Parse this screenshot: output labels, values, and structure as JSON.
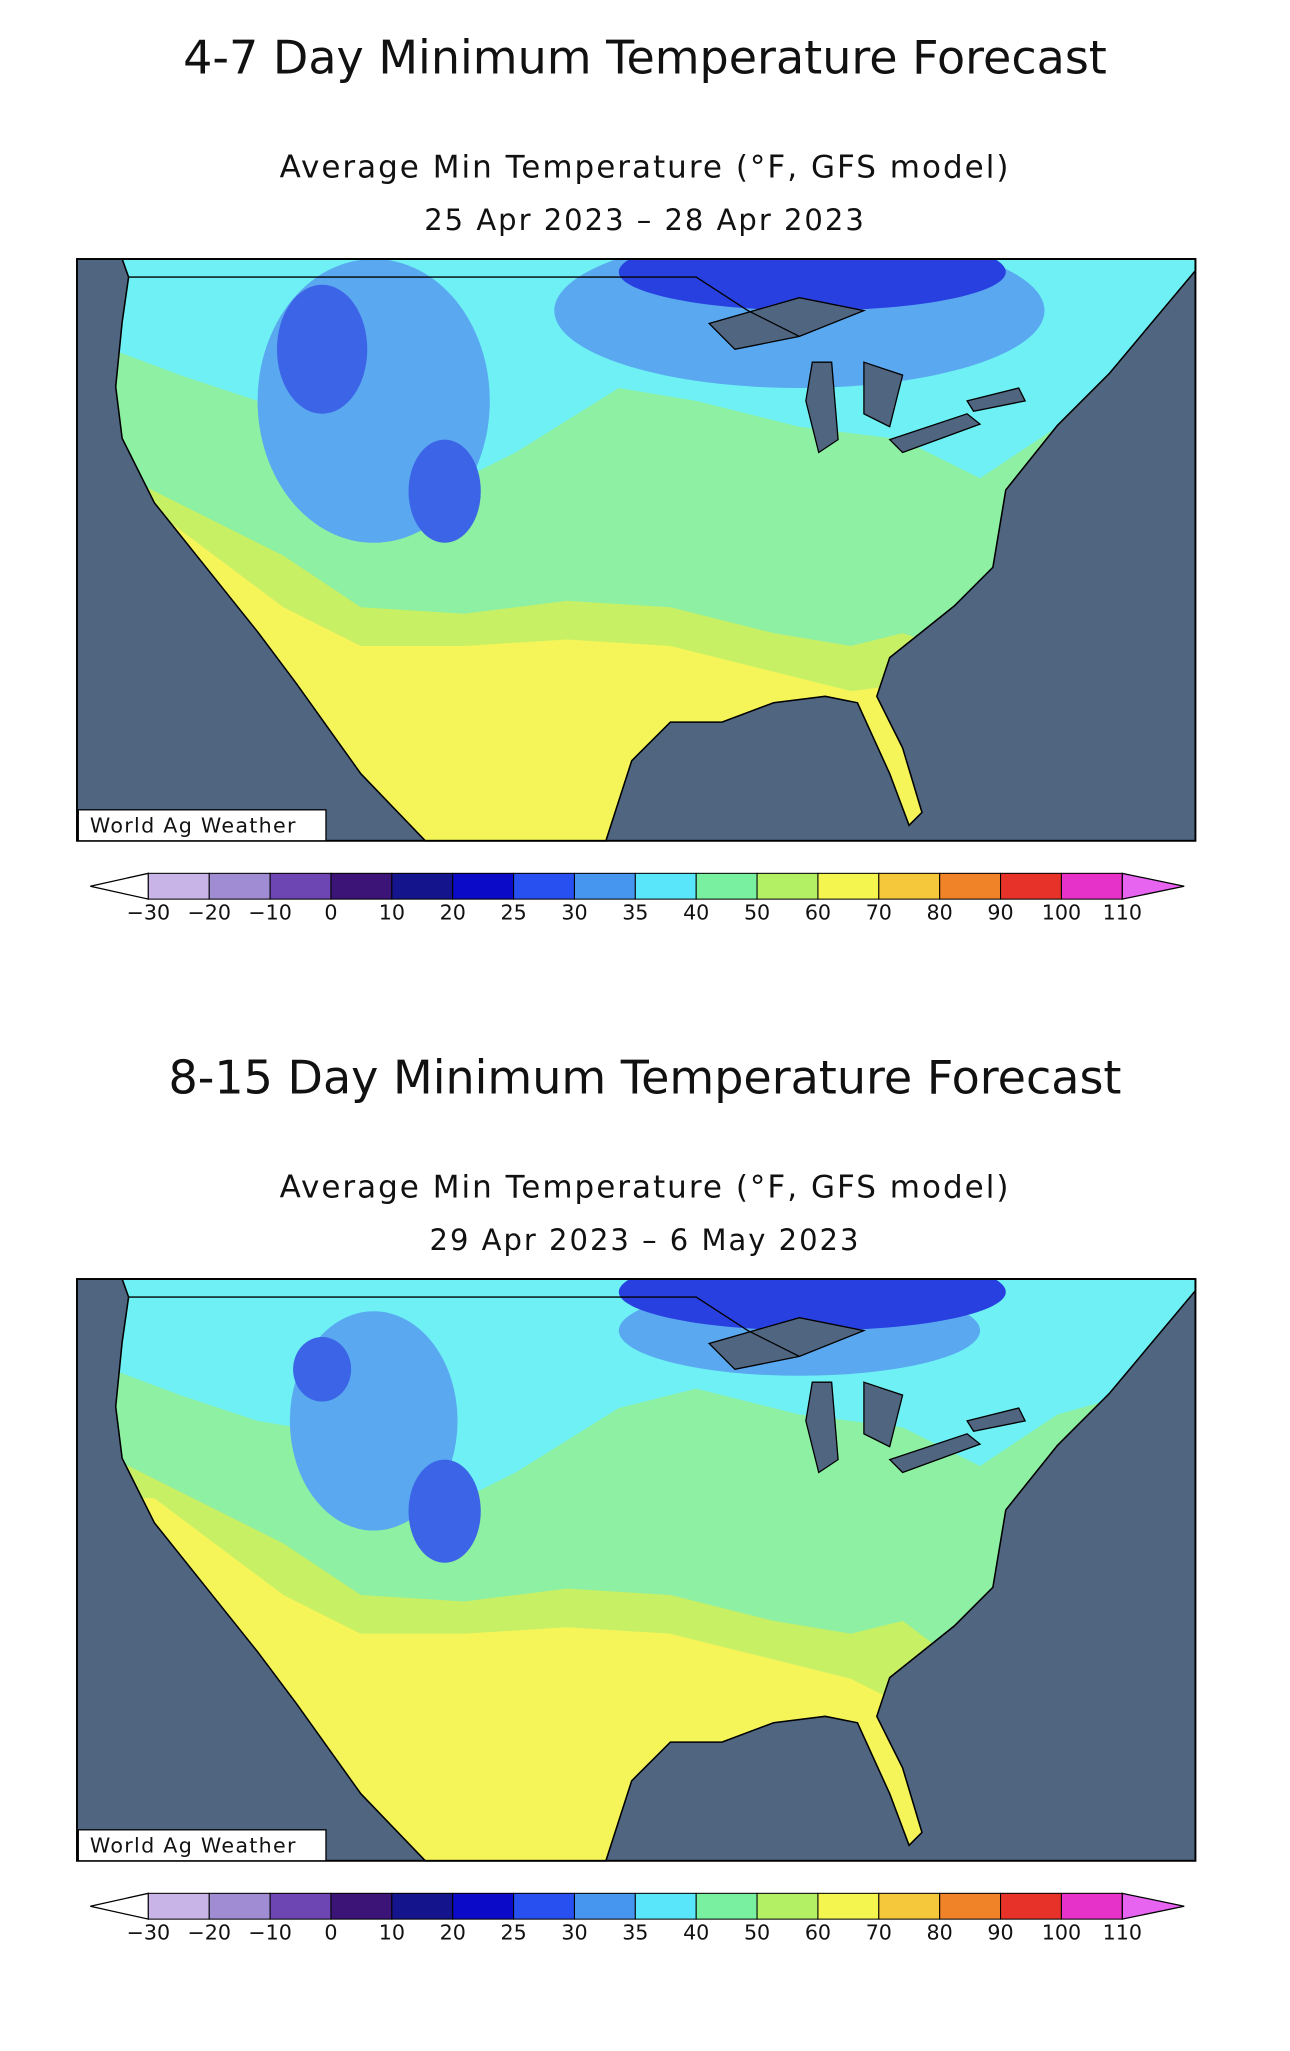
{
  "panels": [
    {
      "heading": "4-7 Day Minimum Temperature Forecast",
      "map": {
        "title": "Average Min Temperature (°F, GFS model)",
        "dates": "25 Apr 2023 – 28 Apr 2023",
        "credit": "World Ag Weather"
      },
      "colorbar": {
        "labels": [
          "−30",
          "−20",
          "−10",
          "0",
          "10",
          "20",
          "25",
          "30",
          "35",
          "40",
          "50",
          "60",
          "70",
          "80",
          "90",
          "100",
          "110"
        ],
        "colors": [
          "#c8b4e6",
          "#a08cd2",
          "#6e46b4",
          "#3c1478",
          "#14148c",
          "#0a0ac8",
          "#2850f0",
          "#4696f0",
          "#5ae6fa",
          "#78f0a0",
          "#b4f064",
          "#f5f550",
          "#f5c83c",
          "#f08228",
          "#e63228",
          "#e632c8"
        ],
        "under_color": "#ffffff",
        "over_color": "#e664f0"
      }
    },
    {
      "heading": "8-15 Day Minimum Temperature Forecast",
      "map": {
        "title": "Average Min Temperature (°F, GFS model)",
        "dates": "29 Apr 2023 – 6 May 2023",
        "credit": "World Ag Weather"
      },
      "colorbar": {
        "labels": [
          "−30",
          "−20",
          "−10",
          "0",
          "10",
          "20",
          "25",
          "30",
          "35",
          "40",
          "50",
          "60",
          "70",
          "80",
          "90",
          "100",
          "110"
        ],
        "colors": [
          "#c8b4e6",
          "#a08cd2",
          "#6e46b4",
          "#3c1478",
          "#14148c",
          "#0a0ac8",
          "#2850f0",
          "#4696f0",
          "#5ae6fa",
          "#78f0a0",
          "#b4f064",
          "#f5f550",
          "#f5c83c",
          "#f08228",
          "#e63228",
          "#e632c8"
        ],
        "under_color": "#ffffff",
        "over_color": "#e664f0"
      }
    }
  ]
}
